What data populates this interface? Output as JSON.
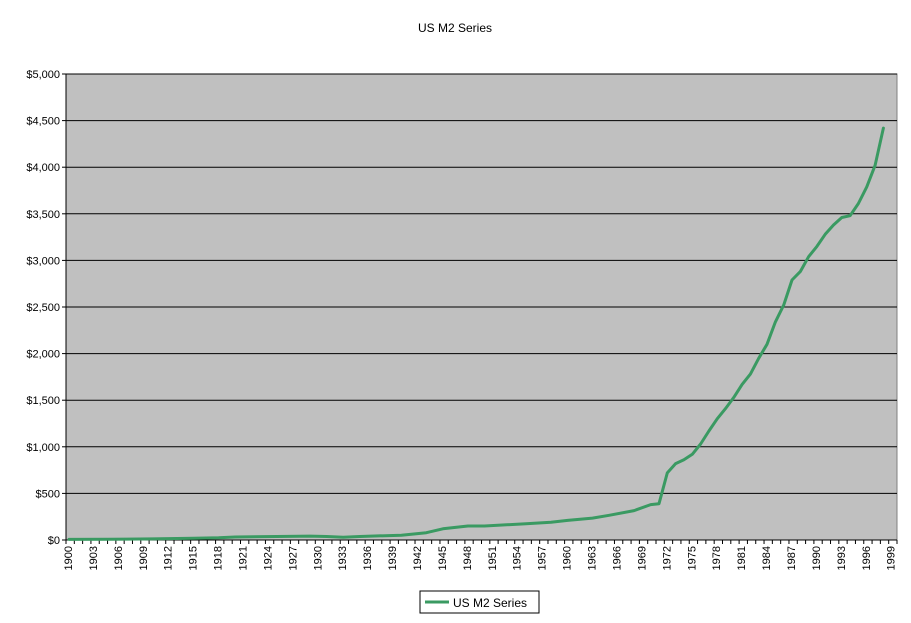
{
  "chart_data": {
    "type": "line",
    "title": "US M2 Series",
    "xlabel": "",
    "ylabel": "",
    "xlim": [
      1900,
      1999
    ],
    "ylim": [
      0,
      5000
    ],
    "y_ticks": [
      0,
      500,
      1000,
      1500,
      2000,
      2500,
      3000,
      3500,
      4000,
      4500,
      5000
    ],
    "y_tick_labels": [
      "$0",
      "$500",
      "$1,000",
      "$1,500",
      "$2,000",
      "$2,500",
      "$3,000",
      "$3,500",
      "$4,000",
      "$4,500",
      "$5,000"
    ],
    "x_tick_labels": [
      "1900",
      "1903",
      "1906",
      "1909",
      "1912",
      "1915",
      "1918",
      "1921",
      "1924",
      "1927",
      "1930",
      "1933",
      "1936",
      "1939",
      "1942",
      "1945",
      "1948",
      "1951",
      "1954",
      "1957",
      "1960",
      "1963",
      "1966",
      "1969",
      "1972",
      "1975",
      "1978",
      "1981",
      "1984",
      "1987",
      "1990",
      "1993",
      "1996",
      "1999"
    ],
    "grid": "horizontal",
    "legend_position": "bottom-center",
    "colors": {
      "plot_bg": "#c0c0c0",
      "line": "#3a9a62",
      "grid": "#000000",
      "page_bg": "#ffffff"
    },
    "series": [
      {
        "name": "US M2 Series",
        "x": [
          1900,
          1905,
          1910,
          1915,
          1918,
          1920,
          1925,
          1929,
          1931,
          1933,
          1935,
          1940,
          1943,
          1945,
          1948,
          1950,
          1955,
          1958,
          1960,
          1963,
          1965,
          1968,
          1970,
          1971,
          1972,
          1973,
          1974,
          1975,
          1976,
          1977,
          1978,
          1979,
          1980,
          1981,
          1982,
          1983,
          1984,
          1985,
          1986,
          1987,
          1988,
          1989,
          1990,
          1991,
          1992,
          1993,
          1994,
          1995,
          1996,
          1997,
          1998
        ],
        "values": [
          6,
          8,
          12,
          18,
          24,
          32,
          38,
          42,
          38,
          30,
          38,
          52,
          78,
          120,
          150,
          150,
          175,
          190,
          210,
          235,
          265,
          315,
          380,
          390,
          720,
          820,
          860,
          920,
          1030,
          1170,
          1300,
          1410,
          1530,
          1670,
          1780,
          1950,
          2100,
          2340,
          2520,
          2790,
          2880,
          3040,
          3150,
          3280,
          3380,
          3460,
          3480,
          3610,
          3790,
          4020,
          4420
        ]
      }
    ]
  }
}
